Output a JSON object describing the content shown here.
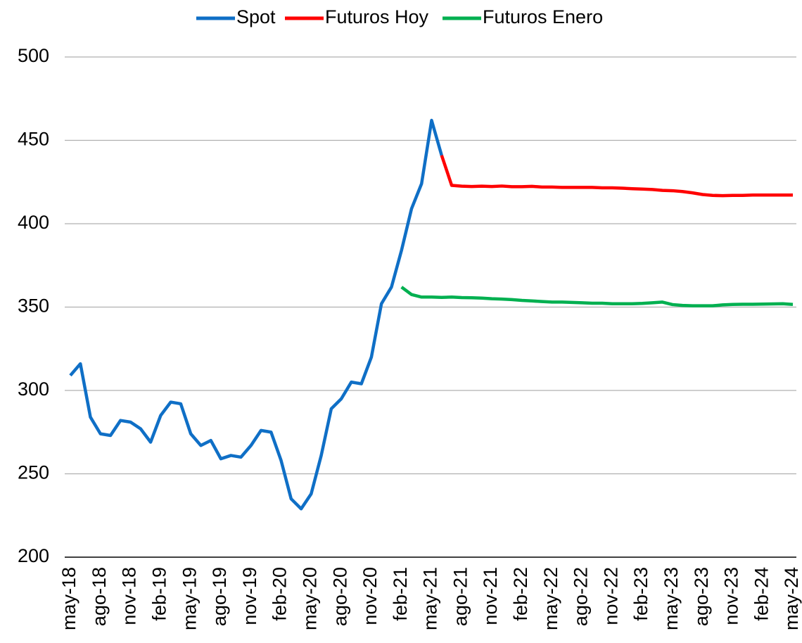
{
  "chart_data": {
    "type": "line",
    "categories": [
      "may-18",
      null,
      null,
      "ago-18",
      null,
      null,
      "nov-18",
      null,
      null,
      "feb-19",
      null,
      null,
      "may-19",
      null,
      null,
      "ago-19",
      null,
      null,
      "nov-19",
      null,
      null,
      "feb-20",
      null,
      null,
      "may-20",
      null,
      null,
      "ago-20",
      null,
      null,
      "nov-20",
      null,
      null,
      "feb-21",
      null,
      null,
      "may-21",
      null,
      null,
      "ago-21",
      null,
      null,
      "nov-21",
      null,
      null,
      "feb-22",
      null,
      null,
      "may-22",
      null,
      null,
      "ago-22",
      null,
      null,
      "nov-22",
      null,
      null,
      "feb-23",
      null,
      null,
      "may-23",
      null,
      null,
      "ago-23",
      null,
      null,
      "nov-23",
      null,
      null,
      "feb-24",
      null,
      null,
      "may-24"
    ],
    "series": [
      {
        "name": "Spot",
        "color": "#0f6fc6",
        "values": [
          309,
          316,
          284,
          274,
          273,
          282,
          281,
          277,
          269,
          285,
          293,
          292,
          274,
          267,
          270,
          259,
          261,
          260,
          267,
          276,
          275,
          258,
          235,
          229,
          238,
          261,
          289,
          295,
          305,
          304,
          320,
          352,
          362,
          384,
          409,
          424,
          462,
          441,
          null,
          null,
          null,
          null,
          null,
          null,
          null,
          null,
          null,
          null,
          null,
          null,
          null,
          null,
          null,
          null,
          null,
          null,
          null,
          null,
          null,
          null,
          null,
          null,
          null,
          null,
          null,
          null,
          null,
          null,
          null,
          null,
          null,
          null,
          null
        ]
      },
      {
        "name": "Futuros Hoy",
        "color": "#ff0000",
        "values": [
          null,
          null,
          null,
          null,
          null,
          null,
          null,
          null,
          null,
          null,
          null,
          null,
          null,
          null,
          null,
          null,
          null,
          null,
          null,
          null,
          null,
          null,
          null,
          null,
          null,
          null,
          null,
          null,
          null,
          null,
          null,
          null,
          null,
          null,
          null,
          null,
          null,
          441,
          423,
          422.5,
          422.3,
          422.5,
          422.3,
          422.6,
          422.2,
          422.2,
          422.4,
          422,
          422,
          421.8,
          421.8,
          421.8,
          421.8,
          421.5,
          421.5,
          421.3,
          421,
          420.8,
          420.5,
          420,
          419.8,
          419.3,
          418.5,
          417.5,
          417,
          416.8,
          417,
          417,
          417.2,
          417.2,
          417.2,
          417.2,
          417.2
        ]
      },
      {
        "name": "Futuros Enero",
        "color": "#00b050",
        "values": [
          null,
          null,
          null,
          null,
          null,
          null,
          null,
          null,
          null,
          null,
          null,
          null,
          null,
          null,
          null,
          null,
          null,
          null,
          null,
          null,
          null,
          null,
          null,
          null,
          null,
          null,
          null,
          null,
          null,
          null,
          null,
          null,
          null,
          362,
          357.5,
          356,
          356,
          355.8,
          356,
          355.7,
          355.6,
          355.4,
          355,
          354.8,
          354.5,
          354,
          353.7,
          353.3,
          353,
          353,
          352.8,
          352.6,
          352.3,
          352.3,
          352,
          352,
          352,
          352.2,
          352.6,
          353,
          351.5,
          351,
          350.8,
          350.8,
          350.8,
          351.3,
          351.6,
          351.7,
          351.7,
          351.8,
          351.9,
          352,
          351.6
        ]
      }
    ],
    "ylim": [
      200,
      500
    ],
    "yticks": [
      200,
      250,
      300,
      350,
      400,
      450,
      500
    ],
    "grid": true,
    "legend": "top"
  }
}
